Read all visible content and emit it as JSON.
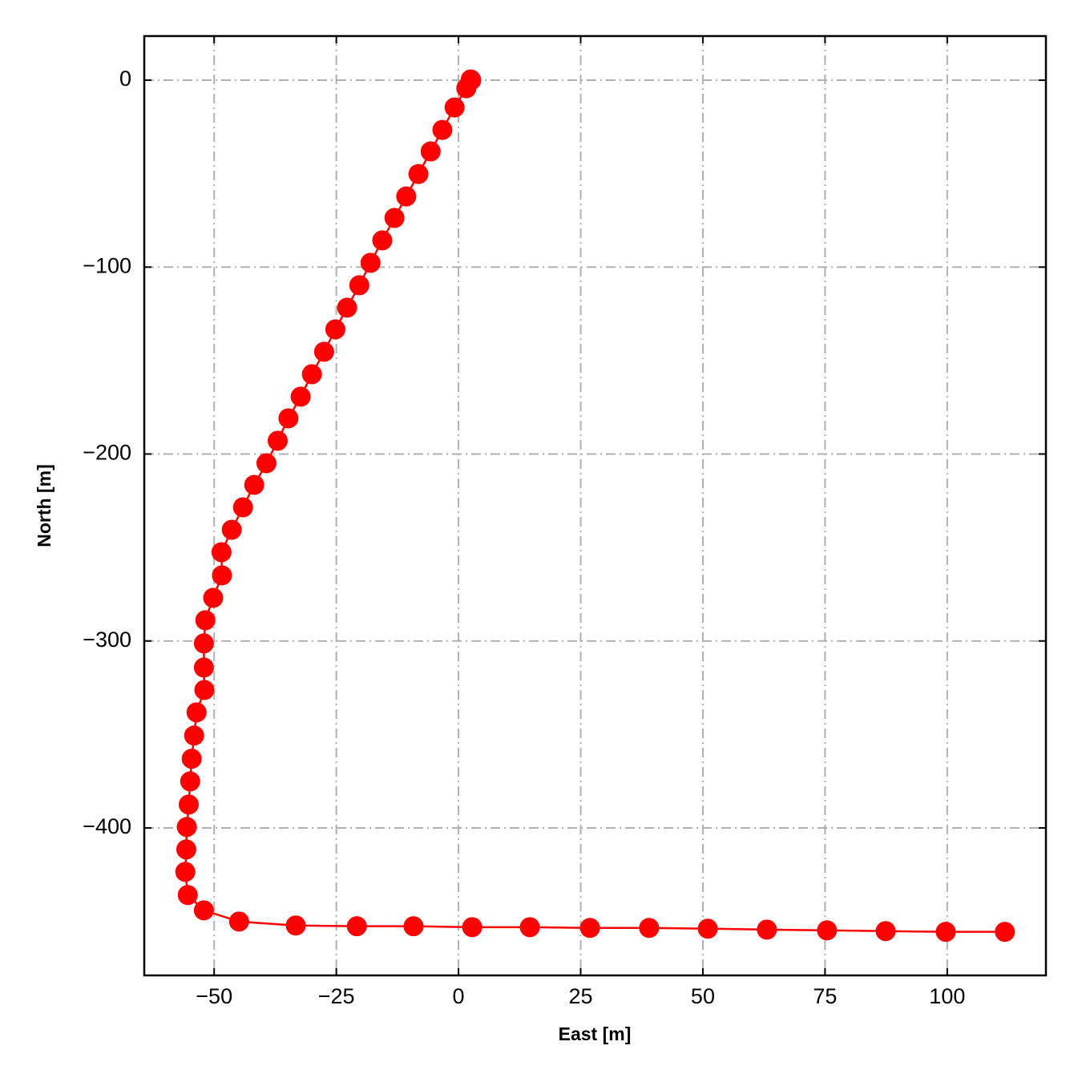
{
  "chart_data": {
    "type": "line",
    "xlabel": "East [m]",
    "ylabel": "North [m]",
    "x": [
      2.6,
      2.5,
      1.6,
      -0.8,
      -3.3,
      -5.7,
      -8.2,
      -10.7,
      -13.1,
      -15.6,
      -18.0,
      -20.3,
      -22.8,
      -25.2,
      -27.5,
      -30.0,
      -32.3,
      -34.8,
      -37.0,
      -39.3,
      -41.8,
      -44.1,
      -46.4,
      -48.5,
      -48.4,
      -50.2,
      -51.8,
      -52.1,
      -52.1,
      -52.0,
      -53.6,
      -54.1,
      -54.6,
      -54.9,
      -55.2,
      -55.6,
      -55.7,
      -55.9,
      -55.4,
      -52.1,
      -44.9,
      -33.3,
      -20.8,
      -9.2,
      2.8,
      14.6,
      26.9,
      39.0,
      51.0,
      63.1,
      75.4,
      87.4,
      99.7,
      111.8
    ],
    "values": [
      0,
      0.4,
      -4.3,
      -14.6,
      -26.6,
      -38.1,
      -50.2,
      -62.2,
      -73.7,
      -85.7,
      -97.7,
      -109.7,
      -121.7,
      -133.3,
      -145.3,
      -157.3,
      -169.3,
      -180.9,
      -192.9,
      -204.9,
      -216.5,
      -228.5,
      -240.5,
      -252.5,
      -264.9,
      -276.9,
      -288.9,
      -301.3,
      -314.2,
      -326.2,
      -338.2,
      -350.6,
      -363.0,
      -375.1,
      -387.5,
      -399.5,
      -411.5,
      -423.5,
      -435.9,
      -444.1,
      -450.1,
      -452.2,
      -452.6,
      -452.6,
      -453.1,
      -453.1,
      -453.5,
      -453.5,
      -453.9,
      -454.4,
      -454.8,
      -455.2,
      -455.6,
      -455.6
    ],
    "color": "#ff0000",
    "xlim": [
      -64.3,
      120.2
    ],
    "ylim": [
      -478.9,
      23.6
    ],
    "xticks": [
      {
        "value": -50,
        "label": "−50"
      },
      {
        "value": -25,
        "label": "−25"
      },
      0,
      25,
      50,
      75,
      100
    ],
    "yticks": [
      0,
      {
        "value": -100,
        "label": "−100"
      },
      {
        "value": -200,
        "label": "−200"
      },
      {
        "value": -300,
        "label": "−300"
      },
      {
        "value": -400,
        "label": "−400"
      }
    ],
    "grid": true
  }
}
